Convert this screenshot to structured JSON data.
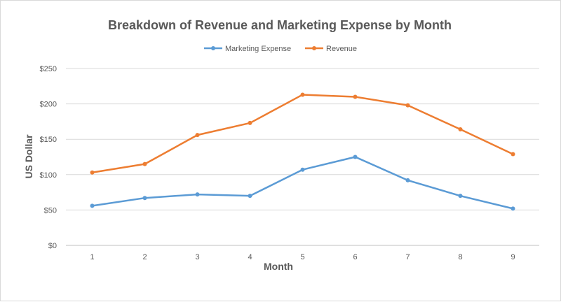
{
  "chart_data": {
    "type": "line",
    "title": "Breakdown of Revenue and Marketing Expense by Month",
    "xlabel": "Month",
    "ylabel": "US Dollar",
    "categories": [
      "1",
      "2",
      "3",
      "4",
      "5",
      "6",
      "7",
      "8",
      "9"
    ],
    "yticks": [
      "$0",
      "$50",
      "$100",
      "$150",
      "$200",
      "$250"
    ],
    "ylim": [
      0,
      250
    ],
    "grid": true,
    "legend_position": "top",
    "series": [
      {
        "name": "Marketing Expense",
        "color": "#5B9BD5",
        "values": [
          56,
          67,
          72,
          70,
          107,
          125,
          92,
          70,
          52
        ]
      },
      {
        "name": "Revenue",
        "color": "#ED7D31",
        "values": [
          103,
          115,
          156,
          173,
          213,
          210,
          198,
          164,
          129
        ]
      }
    ]
  }
}
